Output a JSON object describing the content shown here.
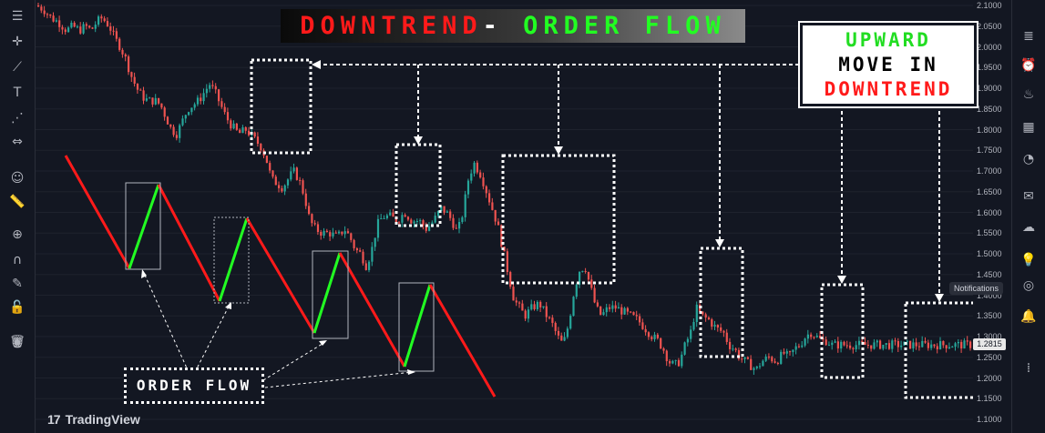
{
  "title": {
    "part1": "DOWNTREND",
    "separator": "-",
    "part2": "ORDER FLOW"
  },
  "callout": {
    "line1": "UPWARD",
    "line2": "MOVE IN",
    "line3": "DOWNTREND"
  },
  "order_flow_label": "ORDER FLOW",
  "brand": {
    "logo": "17",
    "name": "TradingView"
  },
  "notifications_tooltip": "Notifications",
  "current_price_label": "1.2815",
  "colors": {
    "up": "#26a69a",
    "down": "#ef5350",
    "zigzag_down": "#ff1a1a",
    "zigzag_up": "#22ff22",
    "background": "#131722"
  },
  "left_toolbar_icons": [
    "menu-icon",
    "crosshair-icon",
    "trend-line-icon",
    "text-icon",
    "pattern-icon",
    "measure-icon",
    "emoji-icon",
    "ruler-icon",
    "zoom-icon",
    "magnet-icon",
    "lock-pencil-icon",
    "lock-icon",
    "eye-icon",
    "trash-icon"
  ],
  "right_toolbar_icons": [
    "watchlist-icon",
    "alerts-icon",
    "hotlist-icon",
    "calendar-icon",
    "ideas-icon",
    "chat-icon",
    "streams-icon",
    "bulb-icon",
    "broadcast-icon",
    "notifications-icon",
    "chart-layout-icon"
  ],
  "chart_data": {
    "type": "candlestick",
    "y_axis": {
      "ticks": [
        "2.1000",
        "2.0500",
        "2.0000",
        "1.9500",
        "1.9000",
        "1.8500",
        "1.8000",
        "1.7500",
        "1.7000",
        "1.6500",
        "1.6000",
        "1.5500",
        "1.5000",
        "1.4500",
        "1.4000",
        "1.3500",
        "1.3000",
        "1.2500",
        "1.2000",
        "1.1500",
        "1.1000"
      ],
      "range": [
        1.1,
        2.1
      ]
    },
    "price_path": [
      [
        0,
        2.1
      ],
      [
        8,
        2.09
      ],
      [
        16,
        2.07
      ],
      [
        24,
        2.06
      ],
      [
        33,
        2.04
      ],
      [
        40,
        2.05
      ],
      [
        47,
        2.04
      ],
      [
        54,
        2.05
      ],
      [
        60,
        2.04
      ],
      [
        66,
        2.06
      ],
      [
        72,
        2.07
      ],
      [
        80,
        2.05
      ],
      [
        86,
        2.02
      ],
      [
        92,
        2.0
      ],
      [
        98,
        1.97
      ],
      [
        104,
        1.93
      ],
      [
        110,
        1.9
      ],
      [
        116,
        1.88
      ],
      [
        122,
        1.87
      ],
      [
        130,
        1.87
      ],
      [
        136,
        1.86
      ],
      [
        142,
        1.83
      ],
      [
        148,
        1.8
      ],
      [
        154,
        1.79
      ],
      [
        160,
        1.82
      ],
      [
        166,
        1.85
      ],
      [
        172,
        1.86
      ],
      [
        178,
        1.87
      ],
      [
        184,
        1.89
      ],
      [
        190,
        1.91
      ],
      [
        196,
        1.89
      ],
      [
        202,
        1.86
      ],
      [
        208,
        1.83
      ],
      [
        214,
        1.81
      ],
      [
        222,
        1.79
      ],
      [
        230,
        1.8
      ],
      [
        238,
        1.78
      ],
      [
        246,
        1.76
      ],
      [
        252,
        1.73
      ],
      [
        258,
        1.68
      ],
      [
        264,
        1.67
      ],
      [
        270,
        1.66
      ],
      [
        276,
        1.68
      ],
      [
        282,
        1.7
      ],
      [
        288,
        1.68
      ],
      [
        294,
        1.64
      ],
      [
        300,
        1.58
      ],
      [
        306,
        1.56
      ],
      [
        314,
        1.55
      ],
      [
        322,
        1.55
      ],
      [
        330,
        1.54
      ],
      [
        338,
        1.56
      ],
      [
        344,
        1.54
      ],
      [
        350,
        1.51
      ],
      [
        356,
        1.5
      ],
      [
        362,
        1.47
      ],
      [
        368,
        1.51
      ],
      [
        374,
        1.57
      ],
      [
        380,
        1.59
      ],
      [
        388,
        1.59
      ],
      [
        396,
        1.58
      ],
      [
        404,
        1.6
      ],
      [
        412,
        1.58
      ],
      [
        420,
        1.58
      ],
      [
        428,
        1.56
      ],
      [
        436,
        1.58
      ],
      [
        444,
        1.61
      ],
      [
        450,
        1.6
      ],
      [
        456,
        1.58
      ],
      [
        462,
        1.55
      ],
      [
        468,
        1.6
      ],
      [
        474,
        1.68
      ],
      [
        480,
        1.72
      ],
      [
        488,
        1.69
      ],
      [
        494,
        1.65
      ],
      [
        500,
        1.61
      ],
      [
        506,
        1.57
      ],
      [
        512,
        1.51
      ],
      [
        518,
        1.45
      ],
      [
        524,
        1.39
      ],
      [
        530,
        1.37
      ],
      [
        536,
        1.35
      ],
      [
        544,
        1.37
      ],
      [
        552,
        1.38
      ],
      [
        560,
        1.35
      ],
      [
        566,
        1.33
      ],
      [
        572,
        1.3
      ],
      [
        578,
        1.28
      ],
      [
        584,
        1.33
      ],
      [
        590,
        1.41
      ],
      [
        596,
        1.46
      ],
      [
        602,
        1.47
      ],
      [
        608,
        1.42
      ],
      [
        614,
        1.37
      ],
      [
        620,
        1.35
      ],
      [
        628,
        1.37
      ],
      [
        636,
        1.37
      ],
      [
        644,
        1.36
      ],
      [
        652,
        1.35
      ],
      [
        660,
        1.34
      ],
      [
        668,
        1.32
      ],
      [
        676,
        1.3
      ],
      [
        682,
        1.29
      ],
      [
        688,
        1.27
      ],
      [
        694,
        1.24
      ],
      [
        700,
        1.23
      ],
      [
        706,
        1.24
      ],
      [
        712,
        1.28
      ],
      [
        718,
        1.31
      ],
      [
        724,
        1.37
      ],
      [
        730,
        1.35
      ],
      [
        738,
        1.34
      ],
      [
        746,
        1.32
      ],
      [
        754,
        1.31
      ],
      [
        760,
        1.28
      ],
      [
        766,
        1.27
      ],
      [
        772,
        1.25
      ],
      [
        778,
        1.24
      ],
      [
        784,
        1.23
      ],
      [
        790,
        1.22
      ],
      [
        796,
        1.24
      ],
      [
        804,
        1.25
      ],
      [
        812,
        1.24
      ],
      [
        820,
        1.26
      ],
      [
        826,
        1.25
      ],
      [
        832,
        1.27
      ],
      [
        838,
        1.28
      ],
      [
        844,
        1.3
      ],
      [
        850,
        1.31
      ],
      [
        856,
        1.3
      ],
      [
        862,
        1.29
      ],
      [
        868,
        1.29
      ],
      [
        872,
        1.28
      ]
    ]
  }
}
